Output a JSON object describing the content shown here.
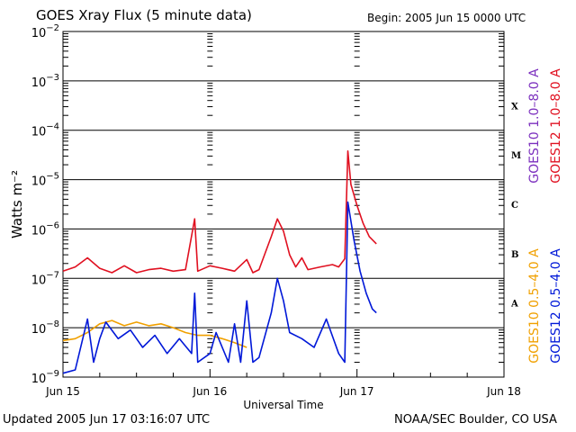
{
  "header": {
    "title": "GOES Xray Flux (5 minute data)",
    "begin": "Begin:  2005 Jun 15 0000 UTC"
  },
  "footer": {
    "updated": "Updated 2005 Jun 17 03:16:07 UTC",
    "credit": "NOAA/SEC Boulder, CO USA"
  },
  "chart_data": {
    "type": "line",
    "title": "GOES Xray Flux (5 minute data)",
    "xlabel": "Universal Time",
    "ylabel": "Watts m⁻²",
    "y_scale": "log",
    "ylim": [
      1e-09,
      0.01
    ],
    "xlim": [
      "2005-06-15 00:00",
      "2005-06-18 00:00"
    ],
    "x_tick_labels": [
      "Jun 15",
      "Jun 16",
      "Jun 17",
      "Jun 18"
    ],
    "y_tick_labels": [
      {
        "base": "10",
        "exp": "−2"
      },
      {
        "base": "10",
        "exp": "−3"
      },
      {
        "base": "10",
        "exp": "−4"
      },
      {
        "base": "10",
        "exp": "−5"
      },
      {
        "base": "10",
        "exp": "−6"
      },
      {
        "base": "10",
        "exp": "−7"
      },
      {
        "base": "10",
        "exp": "−8"
      },
      {
        "base": "10",
        "exp": "−9"
      }
    ],
    "flare_classes": [
      "X",
      "M",
      "C",
      "B",
      "A"
    ],
    "grid": true,
    "legend_placement": "right",
    "series": [
      {
        "name": "GOES10 1.0–8.0 A",
        "color": "#7b2fbe",
        "points": []
      },
      {
        "name": "GOES12 1.0–8.0 A",
        "color": "#e01020",
        "points": [
          [
            "2005-06-15 00:00",
            1.4e-07
          ],
          [
            "2005-06-15 02:00",
            1.7e-07
          ],
          [
            "2005-06-15 04:00",
            2.6e-07
          ],
          [
            "2005-06-15 06:00",
            1.6e-07
          ],
          [
            "2005-06-15 08:00",
            1.3e-07
          ],
          [
            "2005-06-15 10:00",
            1.8e-07
          ],
          [
            "2005-06-15 12:00",
            1.3e-07
          ],
          [
            "2005-06-15 14:00",
            1.5e-07
          ],
          [
            "2005-06-15 16:00",
            1.6e-07
          ],
          [
            "2005-06-15 18:00",
            1.4e-07
          ],
          [
            "2005-06-15 20:00",
            1.5e-07
          ],
          [
            "2005-06-15 21:30",
            1.6e-06
          ],
          [
            "2005-06-15 22:00",
            1.4e-07
          ],
          [
            "2005-06-16 00:00",
            1.8e-07
          ],
          [
            "2005-06-16 02:00",
            1.6e-07
          ],
          [
            "2005-06-16 04:00",
            1.4e-07
          ],
          [
            "2005-06-16 06:00",
            2.4e-07
          ],
          [
            "2005-06-16 07:00",
            1.3e-07
          ],
          [
            "2005-06-16 08:00",
            1.5e-07
          ],
          [
            "2005-06-16 10:00",
            7e-07
          ],
          [
            "2005-06-16 11:00",
            1.6e-06
          ],
          [
            "2005-06-16 12:00",
            9e-07
          ],
          [
            "2005-06-16 13:00",
            3e-07
          ],
          [
            "2005-06-16 14:00",
            1.7e-07
          ],
          [
            "2005-06-16 15:00",
            2.6e-07
          ],
          [
            "2005-06-16 16:00",
            1.5e-07
          ],
          [
            "2005-06-16 18:00",
            1.7e-07
          ],
          [
            "2005-06-16 20:00",
            1.9e-07
          ],
          [
            "2005-06-16 21:00",
            1.7e-07
          ],
          [
            "2005-06-16 22:00",
            2.5e-07
          ],
          [
            "2005-06-16 22:30",
            3.8e-05
          ],
          [
            "2005-06-16 23:00",
            8e-06
          ],
          [
            "2005-06-17 00:00",
            3e-06
          ],
          [
            "2005-06-17 01:00",
            1.3e-06
          ],
          [
            "2005-06-17 02:00",
            7e-07
          ],
          [
            "2005-06-17 03:10",
            5e-07
          ]
        ]
      },
      {
        "name": "GOES10 0.5–4.0 A",
        "color": "#f0a000",
        "points": [
          [
            "2005-06-15 00:00",
            5.5e-09
          ],
          [
            "2005-06-15 02:00",
            6e-09
          ],
          [
            "2005-06-15 04:00",
            8e-09
          ],
          [
            "2005-06-15 06:00",
            1.2e-08
          ],
          [
            "2005-06-15 08:00",
            1.4e-08
          ],
          [
            "2005-06-15 10:00",
            1.1e-08
          ],
          [
            "2005-06-15 12:00",
            1.3e-08
          ],
          [
            "2005-06-15 14:00",
            1.1e-08
          ],
          [
            "2005-06-15 16:00",
            1.2e-08
          ],
          [
            "2005-06-15 18:00",
            1e-08
          ],
          [
            "2005-06-15 20:00",
            8e-09
          ],
          [
            "2005-06-15 22:00",
            7e-09
          ],
          [
            "2005-06-16 00:00",
            7e-09
          ],
          [
            "2005-06-16 02:00",
            6e-09
          ],
          [
            "2005-06-16 04:00",
            5e-09
          ],
          [
            "2005-06-16 06:00",
            4e-09
          ]
        ]
      },
      {
        "name": "GOES12 0.5–4.0 A",
        "color": "#0018d8",
        "points": [
          [
            "2005-06-15 00:00",
            1.2e-09
          ],
          [
            "2005-06-15 02:00",
            1.4e-09
          ],
          [
            "2005-06-15 04:00",
            1.5e-08
          ],
          [
            "2005-06-15 05:00",
            2e-09
          ],
          [
            "2005-06-15 06:00",
            6e-09
          ],
          [
            "2005-06-15 07:00",
            1.3e-08
          ],
          [
            "2005-06-15 09:00",
            6e-09
          ],
          [
            "2005-06-15 11:00",
            9e-09
          ],
          [
            "2005-06-15 13:00",
            4e-09
          ],
          [
            "2005-06-15 15:00",
            7e-09
          ],
          [
            "2005-06-15 17:00",
            3e-09
          ],
          [
            "2005-06-15 19:00",
            6e-09
          ],
          [
            "2005-06-15 21:00",
            3e-09
          ],
          [
            "2005-06-15 21:30",
            5e-08
          ],
          [
            "2005-06-15 22:00",
            2e-09
          ],
          [
            "2005-06-16 00:00",
            3e-09
          ],
          [
            "2005-06-16 01:00",
            8e-09
          ],
          [
            "2005-06-16 03:00",
            2e-09
          ],
          [
            "2005-06-16 04:00",
            1.2e-08
          ],
          [
            "2005-06-16 05:00",
            2e-09
          ],
          [
            "2005-06-16 06:00",
            3.5e-08
          ],
          [
            "2005-06-16 07:00",
            2e-09
          ],
          [
            "2005-06-16 08:00",
            2.5e-09
          ],
          [
            "2005-06-16 10:00",
            2e-08
          ],
          [
            "2005-06-16 11:00",
            1e-07
          ],
          [
            "2005-06-16 12:00",
            3.5e-08
          ],
          [
            "2005-06-16 13:00",
            8e-09
          ],
          [
            "2005-06-16 15:00",
            6e-09
          ],
          [
            "2005-06-16 17:00",
            4e-09
          ],
          [
            "2005-06-16 19:00",
            1.5e-08
          ],
          [
            "2005-06-16 21:00",
            3e-09
          ],
          [
            "2005-06-16 22:00",
            2e-09
          ],
          [
            "2005-06-16 22:30",
            3.5e-06
          ],
          [
            "2005-06-16 23:30",
            6e-07
          ],
          [
            "2005-06-17 00:30",
            1.4e-07
          ],
          [
            "2005-06-17 01:30",
            5e-08
          ],
          [
            "2005-06-17 02:30",
            2.4e-08
          ],
          [
            "2005-06-17 03:10",
            2e-08
          ]
        ]
      }
    ]
  }
}
